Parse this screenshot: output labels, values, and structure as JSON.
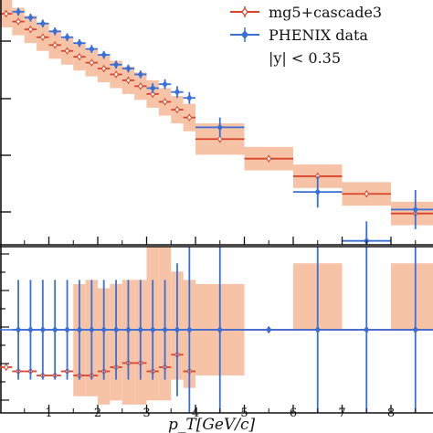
{
  "chart_data": [
    {
      "type": "scatter",
      "panel": "main",
      "ylog": true,
      "xlim": [
        0,
        8.8
      ],
      "legend_placement": "top-right",
      "legend": [
        {
          "name": "mg5+cascade3",
          "color": "#d9442a",
          "band_color": "#f6b896",
          "marker": "open-diamond"
        },
        {
          "name": "PHENIX data",
          "color": "#3a6fd8",
          "marker": "filled-diamond"
        },
        {
          "name": "|y| < 0.35"
        }
      ],
      "series": [
        {
          "name": "mg5+cascade3",
          "x": [
            0.125,
            0.375,
            0.625,
            0.875,
            1.125,
            1.375,
            1.625,
            1.875,
            2.125,
            2.375,
            2.625,
            2.875,
            3.125,
            3.375,
            3.625,
            3.875,
            4.5,
            5.5,
            6.5,
            7.5,
            8.5
          ],
          "xerr": [
            0.125,
            0.125,
            0.125,
            0.125,
            0.125,
            0.125,
            0.125,
            0.125,
            0.125,
            0.125,
            0.125,
            0.125,
            0.125,
            0.125,
            0.125,
            0.125,
            0.5,
            0.5,
            0.5,
            0.5,
            0.5
          ],
          "y": [
            0.98,
            0.94,
            0.9,
            0.86,
            0.82,
            0.79,
            0.76,
            0.73,
            0.7,
            0.67,
            0.64,
            0.61,
            0.57,
            0.53,
            0.49,
            0.45,
            0.34,
            0.24,
            0.15,
            0.06,
            -0.04
          ],
          "band_lo": [
            0.91,
            0.87,
            0.83,
            0.79,
            0.75,
            0.72,
            0.69,
            0.66,
            0.63,
            0.6,
            0.57,
            0.54,
            0.5,
            0.46,
            0.42,
            0.38,
            0.26,
            0.18,
            0.09,
            0.0,
            -0.1
          ],
          "band_hi": [
            1.05,
            1.01,
            0.97,
            0.93,
            0.89,
            0.86,
            0.83,
            0.8,
            0.77,
            0.74,
            0.71,
            0.68,
            0.64,
            0.6,
            0.56,
            0.52,
            0.42,
            0.3,
            0.21,
            0.12,
            0.02
          ]
        },
        {
          "name": "PHENIX data",
          "x": [
            0.375,
            0.625,
            0.875,
            1.125,
            1.375,
            1.625,
            1.875,
            2.125,
            2.375,
            2.625,
            2.875,
            3.125,
            3.375,
            3.625,
            3.875,
            4.5,
            6.5,
            7.5,
            8.5
          ],
          "xerr": [
            0.125,
            0.125,
            0.125,
            0.125,
            0.125,
            0.125,
            0.125,
            0.125,
            0.125,
            0.125,
            0.125,
            0.125,
            0.125,
            0.125,
            0.125,
            0.5,
            0.5,
            0.5,
            0.5
          ],
          "y": [
            0.99,
            0.96,
            0.93,
            0.89,
            0.86,
            0.83,
            0.8,
            0.77,
            0.72,
            0.7,
            0.67,
            0.6,
            0.62,
            0.58,
            0.55,
            0.4,
            0.07,
            -0.18,
            -0.02
          ],
          "yerr": [
            0.02,
            0.02,
            0.02,
            0.02,
            0.02,
            0.02,
            0.02,
            0.02,
            0.02,
            0.02,
            0.02,
            0.025,
            0.025,
            0.03,
            0.03,
            0.05,
            0.08,
            0.1,
            0.1
          ]
        }
      ]
    },
    {
      "type": "scatter",
      "panel": "ratio",
      "xlim": [
        0,
        8.8
      ],
      "ylim": [
        0,
        2
      ],
      "xlabel": "p_T[GeV/c]",
      "x_ticks": [
        "1",
        "2",
        "3",
        "4",
        "5",
        "6",
        "7",
        "8"
      ],
      "series": [
        {
          "name": "mg5+cascade3",
          "x": [
            0.125,
            0.375,
            0.625,
            0.875,
            1.125,
            1.375,
            1.625,
            1.875,
            2.125,
            2.375,
            2.625,
            2.875,
            3.125,
            3.375,
            3.625,
            3.875,
            4.5,
            5.5,
            6.5,
            7.5,
            8.5
          ],
          "xerr": [
            0.125,
            0.125,
            0.125,
            0.125,
            0.125,
            0.125,
            0.125,
            0.125,
            0.125,
            0.125,
            0.125,
            0.125,
            0.125,
            0.125,
            0.125,
            0.125,
            0.5,
            0.5,
            0.5,
            0.5,
            0.5
          ],
          "y": [
            0.55,
            0.5,
            0.5,
            0.45,
            0.45,
            0.5,
            0.45,
            0.45,
            0.5,
            0.55,
            0.6,
            0.6,
            0.5,
            0.55,
            0.7,
            0.5,
            1,
            1,
            1,
            1,
            1
          ],
          "band_lo": [
            0.55,
            0.5,
            0.5,
            0.45,
            0.45,
            0.5,
            0.2,
            0.2,
            0.1,
            0.15,
            0.1,
            0.1,
            0.15,
            0.15,
            0.4,
            0.3,
            0.45,
            1,
            1,
            1,
            1
          ],
          "band_hi": [
            0.55,
            0.5,
            0.5,
            0.45,
            0.45,
            0.5,
            1.55,
            1.6,
            1.5,
            1.55,
            1.6,
            1.6,
            2,
            2,
            1.7,
            1.6,
            1.55,
            1,
            1.8,
            1,
            1.8
          ]
        },
        {
          "name": "PHENIX data",
          "x": [
            0.375,
            0.625,
            0.875,
            1.125,
            1.375,
            1.625,
            1.875,
            2.125,
            2.375,
            2.625,
            2.875,
            3.125,
            3.375,
            3.625,
            3.875,
            4.5,
            5.5,
            6.5,
            7.5,
            8.5
          ],
          "xerr": [
            0.125,
            0.125,
            0.125,
            0.125,
            0.125,
            0.125,
            0.125,
            0.125,
            0.125,
            0.125,
            0.125,
            0.125,
            0.125,
            0.125,
            0.125,
            0.5,
            0.5,
            0.5,
            0.5,
            0.5
          ],
          "y": [
            1,
            1,
            1,
            1,
            1,
            1,
            1,
            1,
            1,
            1,
            1,
            1,
            1,
            1,
            1,
            1,
            1,
            1,
            1,
            1
          ],
          "yerr": [
            0.6,
            0.6,
            0.6,
            0.6,
            0.6,
            0.6,
            0.6,
            0.6,
            0.6,
            0.6,
            0.6,
            0.6,
            0.6,
            0.8,
            1,
            1,
            0,
            1,
            1,
            1
          ]
        }
      ]
    }
  ]
}
